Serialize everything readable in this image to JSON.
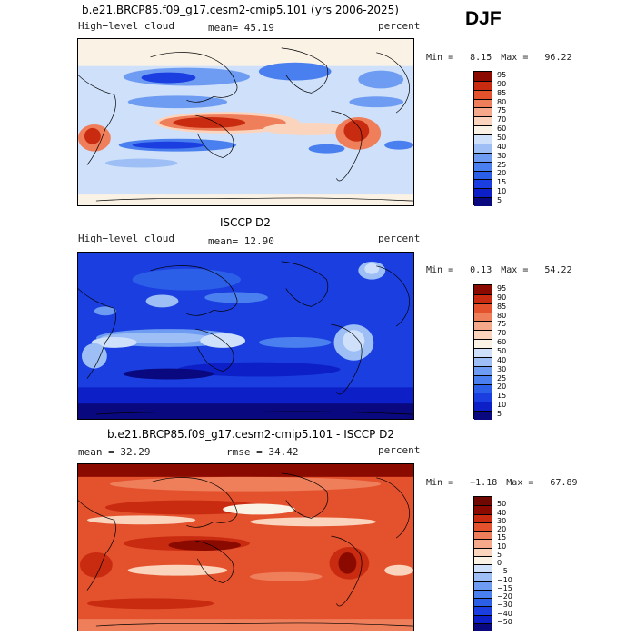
{
  "season": "DJF",
  "chart_data": [
    {
      "type": "heatmap",
      "title": "b.e21.BRCP85.f09_g17.cesm2-cmip5.101 (yrs 2006-2025)",
      "left_label": "High−level cloud",
      "center_label": "mean=  45.19",
      "right_label": "percent",
      "min_label": "Min =",
      "min_value": "8.15",
      "max_label": "Max =",
      "max_value": "96.22",
      "levels": [
        "5",
        "10",
        "15",
        "20",
        "25",
        "30",
        "40",
        "50",
        "60",
        "70",
        "75",
        "80",
        "85",
        "90",
        "95"
      ],
      "colors": [
        "#09087e",
        "#0d20c8",
        "#1a3ee0",
        "#2c5fe8",
        "#4a7fef",
        "#6e9cf2",
        "#9dbff6",
        "#cfe0fa",
        "#fbf2e6",
        "#fbd4bd",
        "#f6a98a",
        "#ef7e5a",
        "#e4512d",
        "#c92b10",
        "#8b0a00"
      ]
    },
    {
      "type": "heatmap",
      "title": "ISCCP D2",
      "left_label": "High−level cloud",
      "center_label": "mean=  12.90",
      "right_label": "percent",
      "min_label": "Min =",
      "min_value": "0.13",
      "max_label": "Max =",
      "max_value": "54.22",
      "levels": [
        "5",
        "10",
        "15",
        "20",
        "25",
        "30",
        "40",
        "50",
        "60",
        "70",
        "75",
        "80",
        "85",
        "90",
        "95"
      ],
      "colors": [
        "#09087e",
        "#0d20c8",
        "#1a3ee0",
        "#2c5fe8",
        "#4a7fef",
        "#6e9cf2",
        "#9dbff6",
        "#cfe0fa",
        "#fbf2e6",
        "#fbd4bd",
        "#f6a98a",
        "#ef7e5a",
        "#e4512d",
        "#c92b10",
        "#8b0a00"
      ]
    },
    {
      "type": "heatmap",
      "title": "b.e21.BRCP85.f09_g17.cesm2-cmip5.101 - ISCCP D2",
      "left_label": "mean =  32.29",
      "center_label": "rmse =  34.42",
      "right_label": "percent",
      "min_label": "Min =",
      "min_value": "−1.18",
      "max_label": "Max =",
      "max_value": "67.89",
      "levels": [
        "−50",
        "−40",
        "−30",
        "−20",
        "−15",
        "−10",
        "−5",
        "0",
        "5",
        "10",
        "15",
        "20",
        "30",
        "40",
        "50"
      ],
      "colors": [
        "#09087e",
        "#0d20c8",
        "#1a3ee0",
        "#2c5fe8",
        "#4a7fef",
        "#6e9cf2",
        "#9dbff6",
        "#cfe0fa",
        "#fbf2e6",
        "#fbd4bd",
        "#f6a98a",
        "#ef7e5a",
        "#e4512d",
        "#c92b10",
        "#8b0a00",
        "#6e0800"
      ]
    }
  ]
}
